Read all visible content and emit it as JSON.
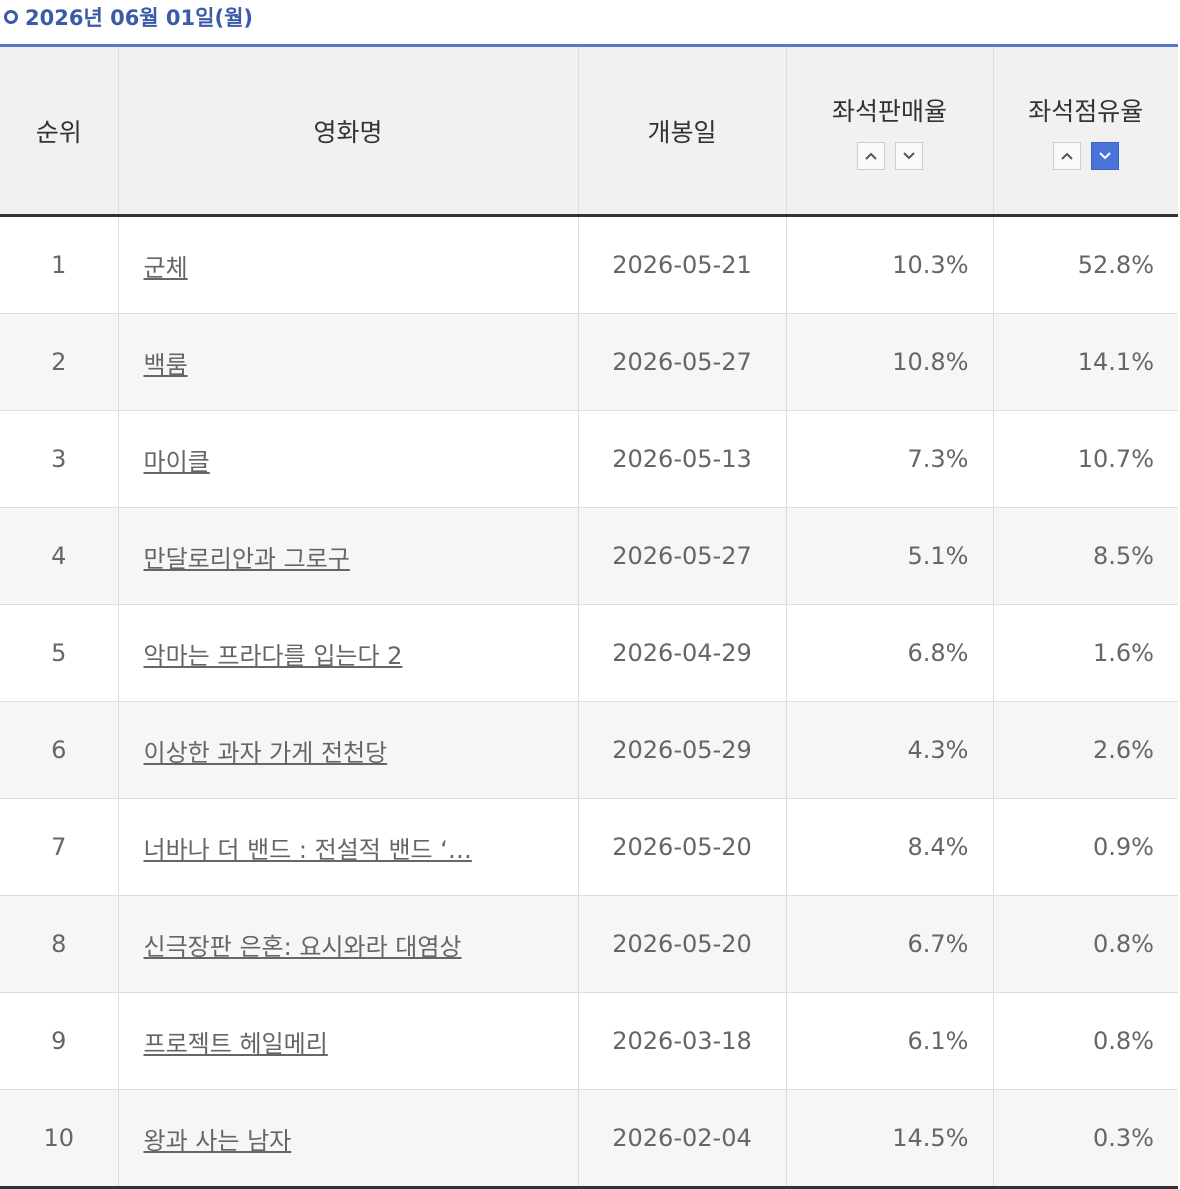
{
  "header": {
    "title": "2026년 06월 01일(월)"
  },
  "table": {
    "columns": [
      "순위",
      "영화명",
      "개봉일",
      "좌석판매율",
      "좌석점유율"
    ],
    "rows": [
      [
        "1",
        "군체",
        "2026-05-21",
        "10.3%",
        "52.8%"
      ],
      [
        "2",
        "백룸",
        "2026-05-27",
        "10.8%",
        "14.1%"
      ],
      [
        "3",
        "마이클",
        "2026-05-13",
        "7.3%",
        "10.7%"
      ],
      [
        "4",
        "만달로리안과 그로구",
        "2026-05-27",
        "5.1%",
        "8.5%"
      ],
      [
        "5",
        "악마는 프라다를 입는다 2",
        "2026-04-29",
        "6.8%",
        "1.6%"
      ],
      [
        "6",
        "이상한 과자 가게 전천당",
        "2026-05-29",
        "4.3%",
        "2.6%"
      ],
      [
        "7",
        "너바나 더 밴드 : 전설적 밴드 ‘…",
        "2026-05-20",
        "8.4%",
        "0.9%"
      ],
      [
        "8",
        "신극장판 은혼: 요시와라 대염상",
        "2026-05-20",
        "6.7%",
        "0.8%"
      ],
      [
        "9",
        "프로젝트 헤일메리",
        "2026-03-18",
        "6.1%",
        "0.8%"
      ],
      [
        "10",
        "왕과 사는 남자",
        "2026-02-04",
        "14.5%",
        "0.3%"
      ]
    ]
  }
}
